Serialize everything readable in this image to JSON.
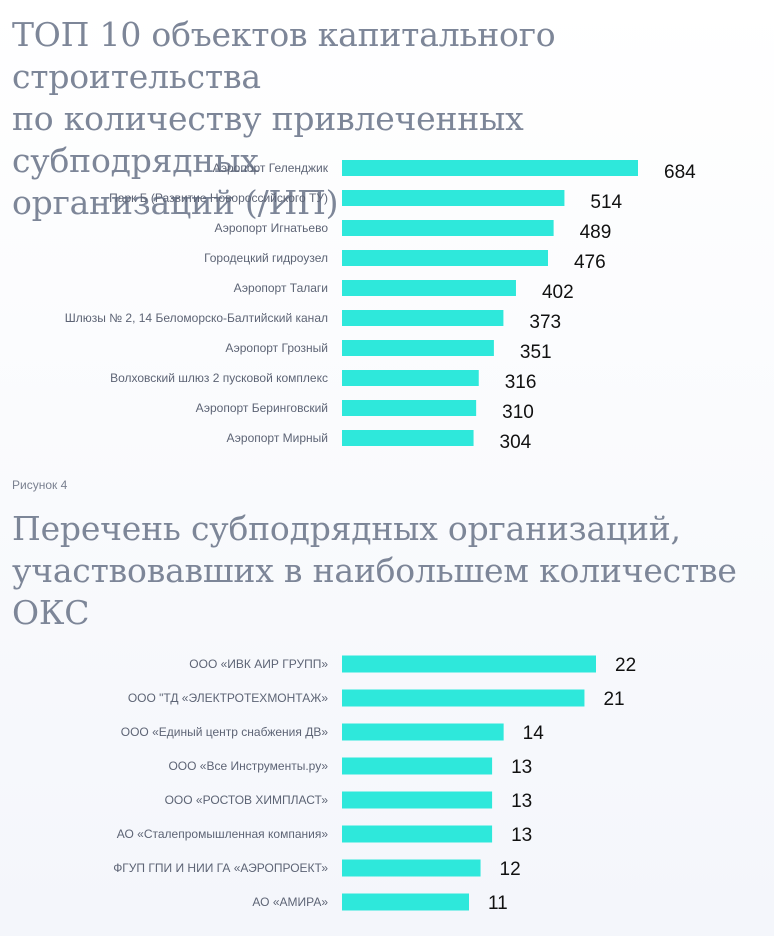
{
  "colors": {
    "bar": "#2ee8db",
    "title": "#7d8698"
  },
  "caption": "Рисунок 4",
  "chart_data": [
    {
      "type": "bar",
      "orientation": "horizontal",
      "title": "ТОП 10 объектов капитального строительства\nпо количеству привлеченных субподрядных\nорганизаций (/ИП)",
      "categories": [
        "Аэропорт Геленджик",
        "Парк Б (Развитие Новороссийского ТУ)",
        "Аэропорт Игнатьево",
        "Городецкий гидроузел",
        "Аэропорт Талаги",
        "Шлюзы № 2, 14 Беломорско-Балтийский канал",
        "Аэропорт Грозный",
        "Волховский шлюз 2 пусковой комплекс",
        "Аэропорт Беринговский",
        "Аэропорт Мирный"
      ],
      "values": [
        684,
        514,
        489,
        476,
        402,
        373,
        351,
        316,
        310,
        304
      ],
      "xlim": [
        0,
        684
      ]
    },
    {
      "type": "bar",
      "orientation": "horizontal",
      "title": "Перечень субподрядных организаций,\nучаствовавших в наибольшем количестве\nОКС",
      "categories": [
        "ООО «ИВК АИР ГРУПП»",
        "ООО \"ТД «ЭЛЕКТРОТЕХМОНТАЖ»",
        "ООО «Единый центр снабжения ДВ»",
        "ООО «Все Инструменты.ру»",
        "ООО «РОСТОВ ХИМПЛАСТ»",
        "АО «Сталепромышленная компания»",
        "ФГУП ГПИ И НИИ ГА «АЭРОПРОЕКТ»",
        "АО «АМИРА»"
      ],
      "values": [
        22,
        21,
        14,
        13,
        13,
        13,
        12,
        11
      ],
      "xlim": [
        0,
        22
      ]
    }
  ]
}
